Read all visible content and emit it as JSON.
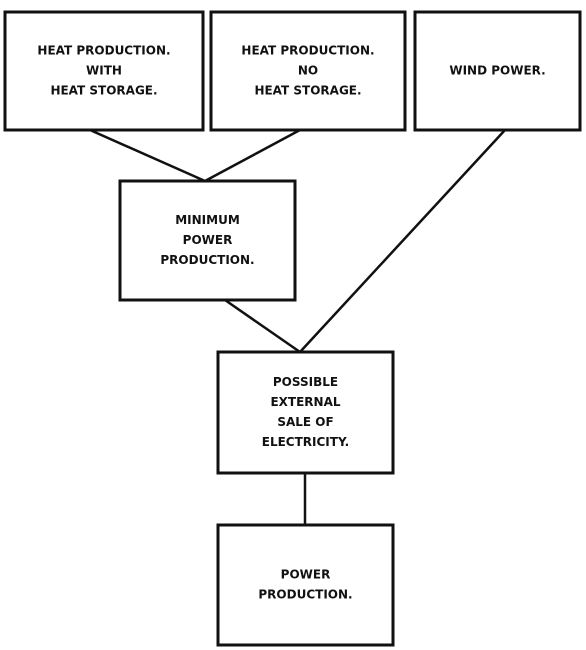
{
  "nodes": [
    {
      "lines": [
        "HEAT PRODUCTION.",
        "WITH",
        "HEAT STORAGE."
      ]
    },
    {
      "lines": [
        "HEAT PRODUCTION.",
        "NO",
        "HEAT STORAGE."
      ]
    },
    {
      "lines": [
        "WIND POWER."
      ]
    },
    {
      "lines": [
        "MINIMUM",
        "POWER",
        "PRODUCTION."
      ]
    },
    {
      "lines": [
        "POSSIBLE",
        "EXTERNAL",
        "SALE OF",
        "ELECTRICITY."
      ]
    },
    {
      "lines": [
        "POWER",
        "PRODUCTION."
      ]
    }
  ]
}
